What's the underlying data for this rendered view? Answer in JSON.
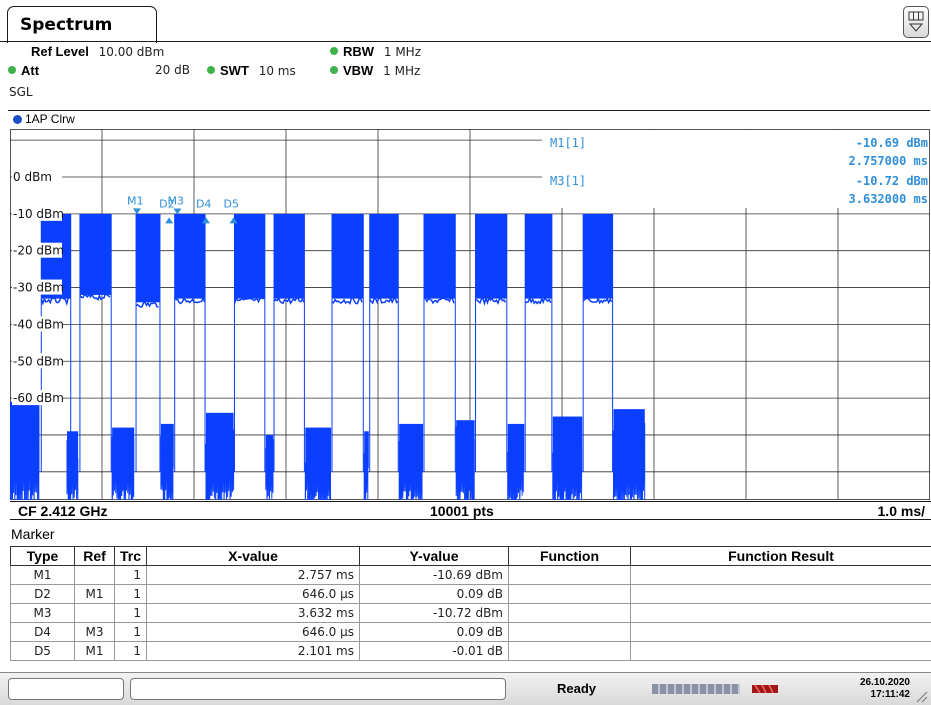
{
  "tab": {
    "label": "Spectrum"
  },
  "settings": {
    "ref_level_label": "Ref Level",
    "ref_level_value": "10.00 dBm",
    "att_label": "Att",
    "att_value": "20 dB",
    "swt_label": "SWT",
    "swt_value": "10 ms",
    "rbw_label": "RBW",
    "rbw_value": "1 MHz",
    "vbw_label": "VBW",
    "vbw_value": "1 MHz",
    "sweep_mode": "SGL",
    "indicator_color": "#3fb24d"
  },
  "trace": {
    "label": "1AP Clrw",
    "color": "#1a4fc8"
  },
  "chart_data": {
    "type": "line",
    "y_tick_labels": [
      "0 dBm",
      "-10 dBm",
      "-20 dBm",
      "-30 dBm",
      "-40 dBm",
      "-50 dBm",
      "-60 dBm"
    ],
    "y_ticks": [
      0,
      -10,
      -20,
      -30,
      -40,
      -50,
      -60
    ],
    "ylim": [
      -90,
      10
    ],
    "xlim": [
      0,
      10
    ],
    "x_unit": "ms",
    "series_color": "#0b3fff",
    "bursts": [
      {
        "start": 0.34,
        "end": 0.66,
        "top": -10,
        "floor": -33
      },
      {
        "start": 0.76,
        "end": 1.1,
        "top": -10,
        "floor": -32
      },
      {
        "start": 1.37,
        "end": 1.63,
        "top": -10,
        "floor": -34
      },
      {
        "start": 1.79,
        "end": 2.12,
        "top": -10,
        "floor": -33
      },
      {
        "start": 2.44,
        "end": 2.77,
        "top": -10,
        "floor": -33
      },
      {
        "start": 2.87,
        "end": 3.2,
        "top": -10,
        "floor": -33
      },
      {
        "start": 3.5,
        "end": 3.84,
        "top": -10,
        "floor": -33
      },
      {
        "start": 3.91,
        "end": 4.22,
        "top": -10,
        "floor": -33
      },
      {
        "start": 4.5,
        "end": 4.84,
        "top": -10,
        "floor": -33
      },
      {
        "start": 5.06,
        "end": 5.4,
        "top": -10,
        "floor": -33
      },
      {
        "start": 5.6,
        "end": 5.89,
        "top": -10,
        "floor": -33
      },
      {
        "start": 6.23,
        "end": 6.55,
        "top": -10,
        "floor": -33
      }
    ],
    "noise_floor": [
      {
        "start": 0.0,
        "end": 0.32,
        "top": -64,
        "bottom": -88
      },
      {
        "start": 0.62,
        "end": 0.74,
        "top": -72,
        "bottom": -87
      },
      {
        "start": 1.11,
        "end": 1.35,
        "top": -71,
        "bottom": -88
      },
      {
        "start": 1.64,
        "end": 1.78,
        "top": -70,
        "bottom": -87
      },
      {
        "start": 2.13,
        "end": 2.43,
        "top": -67,
        "bottom": -88
      },
      {
        "start": 2.78,
        "end": 2.86,
        "top": -73,
        "bottom": -87
      },
      {
        "start": 3.21,
        "end": 3.49,
        "top": -71,
        "bottom": -88
      },
      {
        "start": 3.85,
        "end": 3.9,
        "top": -72,
        "bottom": -87
      },
      {
        "start": 4.23,
        "end": 4.49,
        "top": -70,
        "bottom": -88
      },
      {
        "start": 4.85,
        "end": 5.05,
        "top": -69,
        "bottom": -88
      },
      {
        "start": 5.41,
        "end": 5.59,
        "top": -70,
        "bottom": -88
      },
      {
        "start": 5.9,
        "end": 6.22,
        "top": -68,
        "bottom": -88
      },
      {
        "start": 6.56,
        "end": 6.9,
        "top": -66,
        "bottom": -88
      }
    ],
    "plot_markers": [
      {
        "label": "M1",
        "x": 1.38,
        "y": -10.69,
        "kind": "down"
      },
      {
        "label": "D2",
        "x": 1.73,
        "y": -11.5,
        "kind": "up"
      },
      {
        "label": "M3",
        "x": 1.82,
        "y": -10.72,
        "kind": "down"
      },
      {
        "label": "D4",
        "x": 2.13,
        "y": -11.5,
        "kind": "up"
      },
      {
        "label": "D5",
        "x": 2.43,
        "y": -11.5,
        "kind": "up"
      }
    ],
    "readout": [
      {
        "label": "M1[1]",
        "value": "-10.69 dBm",
        "time": "2.757000 ms"
      },
      {
        "label": "M3[1]",
        "value": "-10.72 dBm",
        "time": "3.632000 ms"
      }
    ],
    "cf_label": "CF 2.412 GHz",
    "pts_label": "10001 pts",
    "span_label": "1.0 ms/"
  },
  "marker_table": {
    "title": "Marker",
    "headers": [
      "Type",
      "Ref",
      "Trc",
      "X-value",
      "Y-value",
      "Function",
      "Function Result"
    ],
    "rows": [
      {
        "type": "M1",
        "ref": "",
        "trc": "1",
        "x": "2.757 ms",
        "y": "-10.69 dBm",
        "func": "",
        "result": ""
      },
      {
        "type": "D2",
        "ref": "M1",
        "trc": "1",
        "x": "646.0 µs",
        "y": "0.09 dB",
        "func": "",
        "result": ""
      },
      {
        "type": "M3",
        "ref": "",
        "trc": "1",
        "x": "3.632 ms",
        "y": "-10.72 dBm",
        "func": "",
        "result": ""
      },
      {
        "type": "D4",
        "ref": "M3",
        "trc": "1",
        "x": "646.0 µs",
        "y": "0.09 dB",
        "func": "",
        "result": ""
      },
      {
        "type": "D5",
        "ref": "M1",
        "trc": "1",
        "x": "2.101 ms",
        "y": "-0.01 dB",
        "func": "",
        "result": ""
      }
    ]
  },
  "status_bar": {
    "state": "Ready",
    "date": "26.10.2020",
    "time": "17:11:42"
  }
}
